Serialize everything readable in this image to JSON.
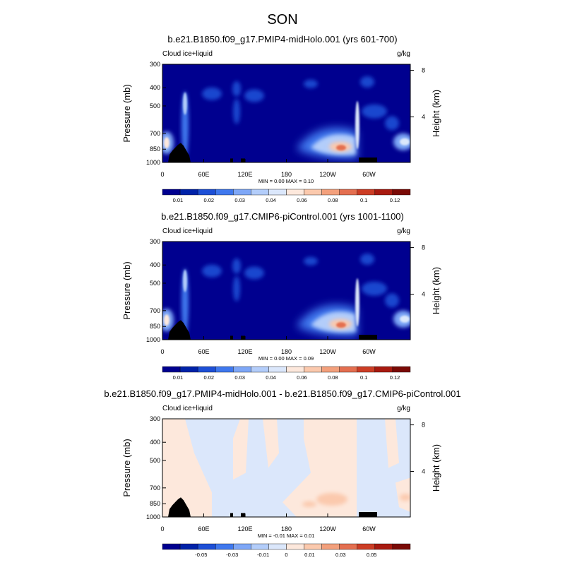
{
  "figure": {
    "season_title": "SON"
  },
  "chart_data": [
    {
      "type": "heatmap",
      "title": "b.e21.B1850.f09_g17.PMIP4-midHolo.001 (yrs 601-700)",
      "left_label": "Cloud ice+liquid",
      "units": "g/kg",
      "ylabel": "Pressure (mb)",
      "ylabel_right": "Height (km)",
      "x_ticks": [
        "0",
        "60E",
        "120E",
        "180",
        "120W",
        "60W"
      ],
      "y_ticks": [
        "300",
        "400",
        "500",
        "700",
        "850",
        "1000"
      ],
      "y_right_ticks": [
        "8",
        "4"
      ],
      "stats": "MIN =   0.00  MAX =   0.10",
      "min": 0.0,
      "max": 0.1,
      "colorbar_labels": [
        "0.01",
        "0.02",
        "0.03",
        "0.04",
        "0.06",
        "0.08",
        "0.1",
        "0.12"
      ],
      "colorbar_colors": [
        "#00008f",
        "#0022a8",
        "#1d4fd6",
        "#3f78ee",
        "#7ea7f7",
        "#b3cdfa",
        "#dbe7fb",
        "#fde8dc",
        "#fbc9ad",
        "#f3a07c",
        "#e46f50",
        "#cc3d25",
        "#a81a10",
        "#7a0a06"
      ],
      "features": [
        {
          "desc": "stratocumulus maximum east of 120W",
          "lon": 255,
          "p": 870,
          "value": 0.1
        },
        {
          "desc": "African west-coast maximum",
          "lon": 5,
          "p": 860,
          "value": 0.05
        },
        {
          "desc": "eastern Atlantic maximum",
          "lon": 340,
          "p": 850,
          "value": 0.05
        }
      ]
    },
    {
      "type": "heatmap",
      "title": "b.e21.B1850.f09_g17.CMIP6-piControl.001 (yrs 1001-1100)",
      "left_label": "Cloud ice+liquid",
      "units": "g/kg",
      "ylabel": "Pressure (mb)",
      "ylabel_right": "Height (km)",
      "x_ticks": [
        "0",
        "60E",
        "120E",
        "180",
        "120W",
        "60W"
      ],
      "y_ticks": [
        "300",
        "400",
        "500",
        "700",
        "850",
        "1000"
      ],
      "y_right_ticks": [
        "8",
        "4"
      ],
      "stats": "MIN =   0.00  MAX =   0.09",
      "min": 0.0,
      "max": 0.09,
      "colorbar_labels": [
        "0.01",
        "0.02",
        "0.03",
        "0.04",
        "0.06",
        "0.08",
        "0.1",
        "0.12"
      ],
      "colorbar_colors": [
        "#00008f",
        "#0022a8",
        "#1d4fd6",
        "#3f78ee",
        "#7ea7f7",
        "#b3cdfa",
        "#dbe7fb",
        "#fde8dc",
        "#fbc9ad",
        "#f3a07c",
        "#e46f50",
        "#cc3d25",
        "#a81a10",
        "#7a0a06"
      ],
      "features": [
        {
          "desc": "stratocumulus maximum east of 120W",
          "lon": 255,
          "p": 870,
          "value": 0.09
        },
        {
          "desc": "African west-coast maximum",
          "lon": 5,
          "p": 860,
          "value": 0.05
        },
        {
          "desc": "eastern Atlantic maximum",
          "lon": 340,
          "p": 850,
          "value": 0.05
        }
      ]
    },
    {
      "type": "heatmap",
      "title": "b.e21.B1850.f09_g17.PMIP4-midHolo.001 - b.e21.B1850.f09_g17.CMIP6-piControl.001",
      "left_label": "Cloud ice+liquid",
      "units": "g/kg",
      "ylabel": "Pressure (mb)",
      "ylabel_right": "Height (km)",
      "x_ticks": [
        "0",
        "60E",
        "120E",
        "180",
        "120W",
        "60W"
      ],
      "y_ticks": [
        "300",
        "400",
        "500",
        "700",
        "850",
        "1000"
      ],
      "y_right_ticks": [
        "8",
        "4"
      ],
      "stats": "MIN =  -0.01  MAX =   0.01",
      "min": -0.01,
      "max": 0.01,
      "colorbar_labels": [
        "-0.05",
        "-0.03",
        "-0.01",
        "0",
        "0.01",
        "0.03",
        "0.05"
      ],
      "colorbar_colors": [
        "#00008f",
        "#0022a8",
        "#1d4fd6",
        "#3f78ee",
        "#7ea7f7",
        "#b3cdfa",
        "#dbe7fb",
        "#fde8dc",
        "#fbc9ad",
        "#f3a07c",
        "#e46f50",
        "#cc3d25",
        "#a81a10",
        "#7a0a06"
      ],
      "features": [
        {
          "desc": "positive difference near 120W low levels",
          "lon": 245,
          "p": 870,
          "value": 0.01
        }
      ]
    }
  ]
}
